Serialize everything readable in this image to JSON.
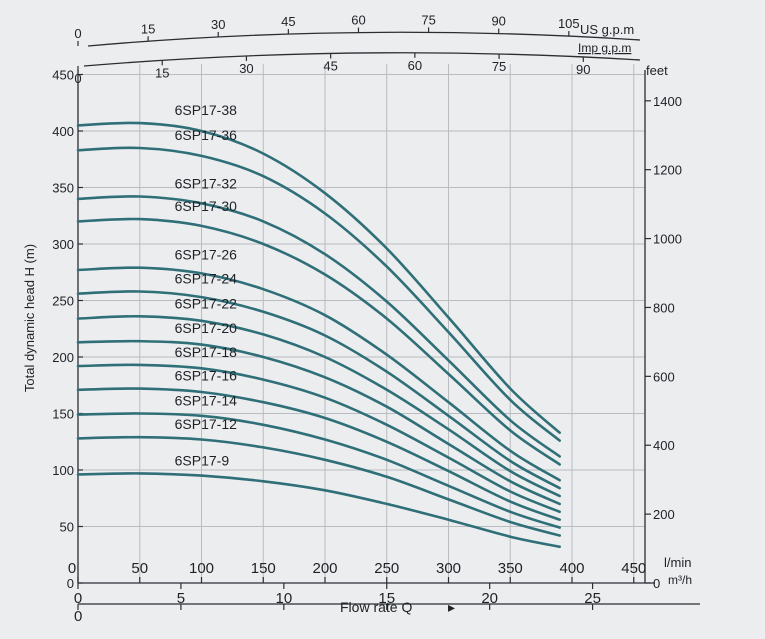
{
  "colors": {
    "curve": "#2f6f78",
    "grid": "#b9bcc0",
    "ink": "#1e2226",
    "paper": "#ecedef"
  },
  "chart_data": {
    "type": "line",
    "title": "",
    "xlabel": "Flow rate Q",
    "x_unit": "l/min",
    "xlim": [
      0,
      480
    ],
    "x_ticks": [
      0,
      50,
      100,
      150,
      200,
      250,
      300,
      350,
      400,
      450
    ],
    "ylabel": "Total dynamic head H (m)",
    "ylim": [
      0,
      450
    ],
    "y_ticks": [
      0,
      50,
      100,
      150,
      200,
      250,
      300,
      350,
      400,
      450
    ],
    "grid": true,
    "secondary_axes": {
      "us_gpm": {
        "unit": "US g.p.m",
        "ticks": [
          "0",
          "15",
          "30",
          "45",
          "60",
          "75",
          "90",
          "105"
        ],
        "values": [
          0,
          15,
          30,
          45,
          60,
          75,
          90,
          105
        ]
      },
      "imp_gpm": {
        "unit": "Imp g.p.m",
        "ticks": [
          "0",
          "15",
          "30",
          "45",
          "60",
          "75",
          "90"
        ],
        "values": [
          0,
          15,
          30,
          45,
          60,
          75,
          90
        ]
      },
      "m3h": {
        "unit": "m³/h",
        "ticks": [
          "0",
          "5",
          "10",
          "15",
          "20",
          "25"
        ],
        "values": [
          0,
          5,
          10,
          15,
          20,
          25
        ]
      },
      "feet": {
        "unit": "feet",
        "ticks": [
          "0",
          "200",
          "400",
          "600",
          "800",
          "1000",
          "1200",
          "1400"
        ],
        "values": [
          0,
          200,
          400,
          600,
          800,
          1000,
          1200,
          1400
        ]
      }
    },
    "series": [
      {
        "name": "6SP17-38",
        "label_x": 75,
        "x": [
          0,
          50,
          100,
          150,
          200,
          250,
          300,
          350,
          390
        ],
        "values": [
          405,
          407,
          400,
          380,
          345,
          296,
          235,
          172,
          133
        ]
      },
      {
        "name": "6SP17-36",
        "label_x": 75,
        "x": [
          0,
          50,
          100,
          150,
          200,
          250,
          300,
          350,
          390
        ],
        "values": [
          383,
          385,
          378,
          360,
          327,
          280,
          222,
          162,
          126
        ]
      },
      {
        "name": "6SP17-32",
        "label_x": 75,
        "x": [
          0,
          50,
          100,
          150,
          200,
          250,
          300,
          350,
          390
        ],
        "values": [
          340,
          342,
          336,
          320,
          291,
          249,
          197,
          144,
          112
        ]
      },
      {
        "name": "6SP17-30",
        "label_x": 75,
        "x": [
          0,
          50,
          100,
          150,
          200,
          250,
          300,
          350,
          390
        ],
        "values": [
          320,
          322,
          316,
          300,
          273,
          234,
          185,
          135,
          105
        ]
      },
      {
        "name": "6SP17-26",
        "label_x": 75,
        "x": [
          0,
          50,
          100,
          150,
          200,
          250,
          300,
          350,
          390
        ],
        "values": [
          277,
          279,
          274,
          260,
          237,
          202,
          160,
          117,
          91
        ]
      },
      {
        "name": "6SP17-24",
        "label_x": 75,
        "x": [
          0,
          50,
          100,
          150,
          200,
          250,
          300,
          350,
          390
        ],
        "values": [
          256,
          258,
          253,
          240,
          219,
          187,
          148,
          108,
          84
        ]
      },
      {
        "name": "6SP17-22",
        "label_x": 75,
        "x": [
          0,
          50,
          100,
          150,
          200,
          250,
          300,
          350,
          390
        ],
        "values": [
          234,
          236,
          232,
          220,
          200,
          171,
          136,
          99,
          77
        ]
      },
      {
        "name": "6SP17-20",
        "label_x": 75,
        "x": [
          0,
          50,
          100,
          150,
          200,
          250,
          300,
          350,
          390
        ],
        "values": [
          213,
          214,
          211,
          200,
          182,
          156,
          123,
          90,
          70
        ]
      },
      {
        "name": "6SP17-18",
        "label_x": 75,
        "x": [
          0,
          50,
          100,
          150,
          200,
          250,
          300,
          350,
          390
        ],
        "values": [
          192,
          193,
          190,
          180,
          164,
          140,
          111,
          81,
          63
        ]
      },
      {
        "name": "6SP17-16",
        "label_x": 75,
        "x": [
          0,
          50,
          100,
          150,
          200,
          250,
          300,
          350,
          390
        ],
        "values": [
          171,
          172,
          169,
          160,
          146,
          125,
          99,
          72,
          56
        ]
      },
      {
        "name": "6SP17-14",
        "label_x": 75,
        "x": [
          0,
          50,
          100,
          150,
          200,
          250,
          300,
          350,
          390
        ],
        "values": [
          149,
          150,
          148,
          140,
          127,
          109,
          86,
          63,
          49
        ]
      },
      {
        "name": "6SP17-12",
        "label_x": 75,
        "x": [
          0,
          50,
          100,
          150,
          200,
          250,
          300,
          350,
          390
        ],
        "values": [
          128,
          129,
          127,
          120,
          109,
          94,
          74,
          54,
          42
        ]
      },
      {
        "name": "6SP17-9",
        "label_x": 75,
        "x": [
          0,
          50,
          100,
          150,
          200,
          250,
          300,
          350,
          390
        ],
        "values": [
          96,
          97,
          95,
          90,
          82,
          70,
          56,
          41,
          32
        ]
      }
    ]
  }
}
